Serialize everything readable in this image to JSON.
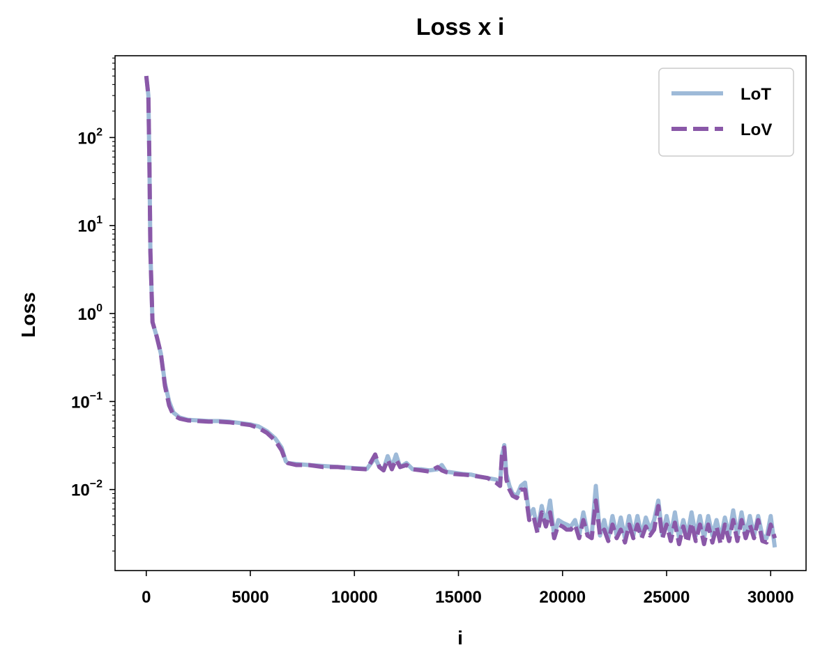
{
  "chart_data": {
    "type": "line",
    "title": "Loss x i",
    "xlabel": "i",
    "ylabel": "Loss",
    "xlim": [
      -1500,
      31700
    ],
    "ylim": [
      0.0012,
      850
    ],
    "yscale": "log",
    "grid": false,
    "legend_position": "top-right",
    "x_ticks": [
      0,
      5000,
      10000,
      15000,
      20000,
      25000,
      30000
    ],
    "x_tick_labels": [
      "0",
      "5000",
      "10000",
      "15000",
      "20000",
      "25000",
      "30000"
    ],
    "y_ticks": [
      0.01,
      0.1,
      1,
      10,
      100
    ],
    "y_tick_labels": [
      {
        "base": "10",
        "exp": "−2"
      },
      {
        "base": "10",
        "exp": "−1"
      },
      {
        "base": "10",
        "exp": "0"
      },
      {
        "base": "10",
        "exp": "1"
      },
      {
        "base": "10",
        "exp": "2"
      }
    ],
    "series": [
      {
        "name": "LoT",
        "color": "#9ebad8",
        "style": "solid",
        "x": [
          0,
          100,
          150,
          200,
          300,
          500,
          700,
          900,
          1100,
          1300,
          1600,
          2000,
          2500,
          3000,
          3500,
          4000,
          4500,
          5000,
          5400,
          5800,
          6200,
          6500,
          6700,
          6800,
          7200,
          7800,
          8500,
          9200,
          10000,
          10600,
          11000,
          11200,
          11400,
          11600,
          11800,
          12000,
          12200,
          12500,
          12800,
          13200,
          13600,
          14000,
          14200,
          14400,
          14800,
          15200,
          15600,
          16000,
          16400,
          16800,
          17000,
          17100,
          17200,
          17300,
          17450,
          17600,
          17800,
          18000,
          18200,
          18400,
          18600,
          18800,
          19000,
          19200,
          19400,
          19600,
          19800,
          20000,
          20200,
          20400,
          20600,
          20800,
          21000,
          21200,
          21400,
          21600,
          21800,
          22000,
          22200,
          22400,
          22600,
          22800,
          23000,
          23200,
          23400,
          23600,
          23800,
          24000,
          24200,
          24400,
          24600,
          24800,
          25000,
          25200,
          25400,
          25600,
          25800,
          26000,
          26200,
          26400,
          26600,
          26800,
          27000,
          27200,
          27400,
          27600,
          27800,
          28000,
          28200,
          28400,
          28600,
          28800,
          29000,
          29200,
          29400,
          29600,
          29800,
          30000,
          30200
        ],
        "y": [
          500,
          300,
          50,
          5,
          0.8,
          0.55,
          0.35,
          0.16,
          0.1,
          0.075,
          0.066,
          0.062,
          0.061,
          0.06,
          0.06,
          0.059,
          0.057,
          0.055,
          0.052,
          0.046,
          0.038,
          0.03,
          0.021,
          0.02,
          0.0195,
          0.019,
          0.0185,
          0.018,
          0.0175,
          0.0172,
          0.023,
          0.018,
          0.017,
          0.024,
          0.018,
          0.025,
          0.018,
          0.02,
          0.017,
          0.017,
          0.0165,
          0.017,
          0.019,
          0.016,
          0.0155,
          0.015,
          0.0148,
          0.014,
          0.0135,
          0.013,
          0.012,
          0.025,
          0.032,
          0.015,
          0.011,
          0.009,
          0.0085,
          0.011,
          0.012,
          0.005,
          0.006,
          0.0035,
          0.0065,
          0.004,
          0.0075,
          0.003,
          0.0045,
          0.0042,
          0.004,
          0.0038,
          0.0045,
          0.003,
          0.0055,
          0.0032,
          0.003,
          0.011,
          0.003,
          0.0045,
          0.0028,
          0.005,
          0.003,
          0.0048,
          0.0028,
          0.005,
          0.003,
          0.005,
          0.003,
          0.0048,
          0.0035,
          0.0045,
          0.0075,
          0.003,
          0.005,
          0.003,
          0.0055,
          0.0028,
          0.0045,
          0.003,
          0.0055,
          0.003,
          0.005,
          0.0028,
          0.005,
          0.003,
          0.0045,
          0.0028,
          0.0048,
          0.003,
          0.0058,
          0.003,
          0.0055,
          0.003,
          0.005,
          0.003,
          0.005,
          0.003,
          0.0028,
          0.005,
          0.0022
        ]
      },
      {
        "name": "LoV",
        "color": "#8a58a8",
        "style": "dashed",
        "x": [
          0,
          100,
          150,
          200,
          300,
          500,
          700,
          900,
          1100,
          1300,
          1600,
          2000,
          2500,
          3000,
          3500,
          4000,
          4500,
          5000,
          5400,
          5800,
          6200,
          6500,
          6700,
          6800,
          7200,
          7800,
          8500,
          9200,
          10000,
          10600,
          11000,
          11200,
          11400,
          11600,
          11800,
          12000,
          12200,
          12500,
          12800,
          13200,
          13600,
          14000,
          14200,
          14400,
          14800,
          15200,
          15600,
          16000,
          16400,
          16800,
          17000,
          17100,
          17200,
          17300,
          17450,
          17600,
          17800,
          18000,
          18200,
          18400,
          18600,
          18800,
          19000,
          19200,
          19400,
          19600,
          19800,
          20000,
          20200,
          20400,
          20600,
          20800,
          21000,
          21200,
          21400,
          21600,
          21800,
          22000,
          22200,
          22400,
          22600,
          22800,
          23000,
          23200,
          23400,
          23600,
          23800,
          24000,
          24200,
          24400,
          24600,
          24800,
          25000,
          25200,
          25400,
          25600,
          25800,
          26000,
          26200,
          26400,
          26600,
          26800,
          27000,
          27200,
          27400,
          27600,
          27800,
          28000,
          28200,
          28400,
          28600,
          28800,
          29000,
          29200,
          29400,
          29600,
          29800,
          30000,
          30200
        ],
        "y": [
          500,
          300,
          50,
          5,
          0.8,
          0.55,
          0.35,
          0.15,
          0.09,
          0.07,
          0.064,
          0.061,
          0.06,
          0.059,
          0.059,
          0.058,
          0.056,
          0.054,
          0.05,
          0.044,
          0.036,
          0.028,
          0.021,
          0.02,
          0.019,
          0.019,
          0.018,
          0.018,
          0.0173,
          0.017,
          0.025,
          0.018,
          0.0165,
          0.022,
          0.017,
          0.022,
          0.018,
          0.019,
          0.017,
          0.0165,
          0.016,
          0.018,
          0.0165,
          0.0158,
          0.015,
          0.0148,
          0.0145,
          0.014,
          0.0135,
          0.012,
          0.011,
          0.028,
          0.03,
          0.013,
          0.01,
          0.0085,
          0.008,
          0.01,
          0.01,
          0.0045,
          0.005,
          0.0032,
          0.0055,
          0.0038,
          0.0055,
          0.0028,
          0.004,
          0.0038,
          0.0035,
          0.0035,
          0.004,
          0.0028,
          0.0045,
          0.003,
          0.0028,
          0.0075,
          0.003,
          0.0035,
          0.0026,
          0.004,
          0.0028,
          0.0035,
          0.0025,
          0.004,
          0.0028,
          0.004,
          0.0028,
          0.0038,
          0.003,
          0.0035,
          0.0065,
          0.0028,
          0.004,
          0.0026,
          0.0042,
          0.0024,
          0.0038,
          0.0025,
          0.0042,
          0.0026,
          0.004,
          0.0024,
          0.004,
          0.0025,
          0.0038,
          0.0024,
          0.004,
          0.0026,
          0.0045,
          0.0026,
          0.0045,
          0.0028,
          0.004,
          0.0028,
          0.0045,
          0.0026,
          0.0025,
          0.004,
          0.0028
        ]
      }
    ]
  }
}
